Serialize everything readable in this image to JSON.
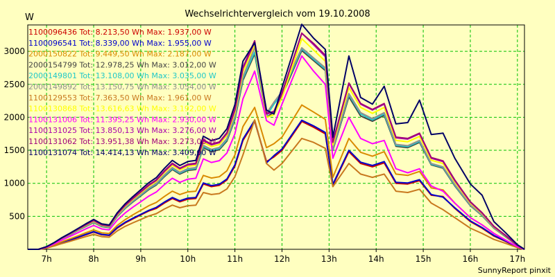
{
  "chart_data": {
    "type": "line",
    "title": "Wechselrichtervergleich vom 19.10.2008",
    "ylabel": "W",
    "xlabel": "",
    "ylim": [
      0,
      3400
    ],
    "xlim": [
      6.6,
      17.15
    ],
    "y_ticks": [
      500,
      1000,
      1500,
      2000,
      2500,
      3000
    ],
    "x_ticks": [
      {
        "v": 7,
        "label": "7h"
      },
      {
        "v": 8,
        "label": "8h"
      },
      {
        "v": 9,
        "label": "9h"
      },
      {
        "v": 10,
        "label": "10h"
      },
      {
        "v": 11,
        "label": "11h"
      },
      {
        "v": 12,
        "label": "12h"
      },
      {
        "v": 13,
        "label": "13h"
      },
      {
        "v": 14,
        "label": "14h"
      },
      {
        "v": 15,
        "label": "15h"
      },
      {
        "v": 16,
        "label": "16h"
      },
      {
        "v": 17,
        "label": "17h"
      }
    ],
    "grid": true,
    "legend_position": "top-left",
    "footer": "SunnyReport pinxit",
    "x": [
      6.6,
      6.83,
      7.0,
      7.17,
      7.33,
      7.5,
      7.67,
      7.83,
      8.0,
      8.17,
      8.33,
      8.5,
      8.67,
      8.83,
      9.0,
      9.17,
      9.33,
      9.5,
      9.67,
      9.83,
      10.0,
      10.17,
      10.33,
      10.5,
      10.67,
      10.83,
      11.0,
      11.17,
      11.42,
      11.67,
      11.83,
      12.0,
      12.42,
      12.67,
      12.92,
      13.08,
      13.42,
      13.67,
      13.92,
      14.17,
      14.42,
      14.67,
      14.92,
      15.17,
      15.42,
      15.67,
      16.0,
      16.25,
      16.5,
      16.75,
      17.0,
      17.15
    ],
    "series": [
      {
        "name": "1100096436 Tot: 8.213,50 Wh Max: 1.937,00 W",
        "color": "#cc0000",
        "values": [
          0,
          0,
          20,
          60,
          100,
          140,
          180,
          220,
          260,
          220,
          210,
          320,
          400,
          460,
          520,
          580,
          620,
          700,
          770,
          720,
          760,
          770,
          990,
          950,
          970,
          1050,
          1260,
          1650,
          1937,
          1330,
          1400,
          1500,
          1937,
          1850,
          1750,
          970,
          1480,
          1300,
          1250,
          1310,
          1000,
          990,
          1040,
          820,
          800,
          620,
          420,
          320,
          200,
          120,
          30,
          0
        ]
      },
      {
        "name": "1100096541 Tot: 8.339,00 Wh Max: 1.955,00 W",
        "color": "#0000cc",
        "values": [
          0,
          0,
          22,
          62,
          104,
          145,
          185,
          226,
          268,
          226,
          215,
          330,
          410,
          470,
          530,
          590,
          635,
          715,
          785,
          735,
          775,
          785,
          1005,
          965,
          985,
          1065,
          1280,
          1670,
          1955,
          1310,
          1420,
          1520,
          1955,
          1870,
          1770,
          985,
          1500,
          1320,
          1270,
          1330,
          1015,
          1005,
          1055,
          830,
          790,
          630,
          430,
          330,
          210,
          125,
          35,
          0
        ]
      },
      {
        "name": "2000150822 Tot: 9.449,50 Wh Max: 2.187,00 W",
        "color": "#d98a00",
        "values": [
          0,
          0,
          25,
          70,
          115,
          160,
          205,
          250,
          295,
          250,
          240,
          360,
          450,
          520,
          590,
          660,
          710,
          800,
          880,
          830,
          870,
          880,
          1120,
          1080,
          1100,
          1190,
          1430,
          1860,
          2150,
          1540,
          1600,
          1700,
          2187,
          2080,
          1970,
          1090,
          1680,
          1470,
          1410,
          1480,
          1140,
          1120,
          1180,
          930,
          900,
          700,
          480,
          370,
          240,
          140,
          40,
          0
        ]
      },
      {
        "name": "2000154799 Tot: 12.978,25 Wh Max: 3.012,00 W",
        "color": "#444444",
        "values": [
          0,
          0,
          35,
          95,
          160,
          220,
          285,
          345,
          405,
          345,
          330,
          495,
          620,
          715,
          810,
          905,
          975,
          1100,
          1210,
          1140,
          1195,
          1210,
          1540,
          1480,
          1510,
          1640,
          1970,
          2560,
          2960,
          2000,
          2080,
          2330,
          3012,
          2860,
          2710,
          1500,
          2310,
          2020,
          1940,
          2030,
          1560,
          1540,
          1620,
          1280,
          1230,
          960,
          660,
          510,
          320,
          190,
          55,
          0
        ]
      },
      {
        "name": "2000149801 Tot: 13.108,00 Wh Max: 3.035,00 W",
        "color": "#20c8c8",
        "values": [
          0,
          0,
          36,
          96,
          162,
          223,
          289,
          350,
          411,
          350,
          335,
          502,
          628,
          724,
          820,
          916,
          987,
          1113,
          1224,
          1154,
          1210,
          1224,
          1558,
          1497,
          1528,
          1660,
          1993,
          2590,
          2990,
          2020,
          2200,
          2360,
          3035,
          2880,
          2730,
          1510,
          2340,
          2050,
          1960,
          2050,
          1575,
          1555,
          1635,
          1290,
          1240,
          970,
          665,
          515,
          325,
          195,
          55,
          0
        ]
      },
      {
        "name": "2000149892 Tot: 13.150,75 Wh Max: 3.054,00 W",
        "color": "#909090",
        "values": [
          0,
          0,
          37,
          97,
          164,
          226,
          292,
          354,
          415,
          354,
          338,
          508,
          635,
          732,
          829,
          926,
          998,
          1125,
          1238,
          1167,
          1223,
          1238,
          1575,
          1513,
          1545,
          1678,
          2015,
          2615,
          3054,
          2060,
          2230,
          2390,
          3054,
          2900,
          2750,
          1520,
          2360,
          2070,
          1980,
          2070,
          1590,
          1570,
          1650,
          1300,
          1250,
          980,
          670,
          520,
          330,
          198,
          56,
          0
        ]
      },
      {
        "name": "1100129553 Tot: 7.363,50 Wh Max: 1.961,00 W",
        "color": "#c8781e",
        "values": [
          0,
          0,
          18,
          52,
          88,
          122,
          158,
          192,
          226,
          192,
          184,
          278,
          348,
          400,
          452,
          505,
          540,
          610,
          670,
          630,
          660,
          670,
          860,
          830,
          845,
          915,
          1100,
          1430,
          1961,
          1300,
          1200,
          1300,
          1680,
          1620,
          1530,
          950,
          1300,
          1140,
          1090,
          1140,
          880,
          860,
          910,
          700,
          600,
          480,
          320,
          240,
          150,
          90,
          25,
          0
        ]
      },
      {
        "name": "1100130868 Tot: 13.616,63 Wh Max: 3.192,00 W",
        "color": "#ffff00",
        "values": [
          0,
          0,
          38,
          100,
          168,
          233,
          300,
          364,
          428,
          364,
          348,
          522,
          653,
          753,
          853,
          953,
          1027,
          1158,
          1274,
          1201,
          1258,
          1274,
          1621,
          1557,
          1589,
          1727,
          2073,
          2690,
          3100,
          2000,
          2040,
          2300,
          3192,
          3020,
          2850,
          1580,
          2450,
          2150,
          2060,
          2150,
          1650,
          1630,
          1710,
          1350,
          1300,
          1020,
          700,
          540,
          340,
          205,
          58,
          0
        ]
      },
      {
        "name": "1100131006 Tot: 11.395,25 Wh Max: 2.930,00 W",
        "color": "#ff00ff",
        "values": [
          0,
          0,
          32,
          85,
          142,
          197,
          254,
          308,
          362,
          308,
          295,
          441,
          552,
          637,
          721,
          806,
          868,
          979,
          1077,
          1015,
          1063,
          1077,
          1370,
          1316,
          1343,
          1460,
          1750,
          2280,
          2700,
          1950,
          1880,
          2200,
          2930,
          2700,
          2500,
          1380,
          2000,
          1680,
          1600,
          1650,
          1220,
          1160,
          1220,
          960,
          880,
          700,
          480,
          370,
          240,
          140,
          40,
          0
        ]
      },
      {
        "name": "1100131025 Tot: 13.850,13 Wh Max: 3.276,00 W",
        "color": "#aa00aa",
        "values": [
          0,
          0,
          39,
          102,
          171,
          237,
          305,
          370,
          435,
          370,
          354,
          531,
          664,
          766,
          867,
          969,
          1044,
          1177,
          1295,
          1221,
          1279,
          1295,
          1648,
          1583,
          1616,
          1756,
          2108,
          2740,
          3140,
          2050,
          2080,
          2360,
          3276,
          3100,
          2920,
          1620,
          2510,
          2200,
          2110,
          2200,
          1690,
          1670,
          1750,
          1380,
          1330,
          1040,
          715,
          550,
          345,
          208,
          59,
          0
        ]
      },
      {
        "name": "1100131062 Tot: 13.951,38 Wh Max: 3.273,00 W",
        "color": "#a0007a",
        "values": [
          0,
          0,
          39,
          103,
          172,
          239,
          307,
          373,
          438,
          373,
          356,
          535,
          669,
          771,
          873,
          976,
          1051,
          1186,
          1304,
          1229,
          1288,
          1304,
          1659,
          1594,
          1627,
          1768,
          2122,
          2760,
          3160,
          2060,
          2090,
          2370,
          3273,
          3120,
          2940,
          1630,
          2520,
          2210,
          2120,
          2210,
          1700,
          1680,
          1760,
          1390,
          1340,
          1050,
          720,
          555,
          348,
          210,
          60,
          0
        ]
      },
      {
        "name": "1100131074 Tot: 14.414,13 Wh Max: 3.409,00 W",
        "color": "#000066",
        "values": [
          0,
          0,
          40,
          106,
          178,
          246,
          317,
          385,
          452,
          385,
          368,
          552,
          690,
          796,
          902,
          1008,
          1086,
          1225,
          1347,
          1270,
          1330,
          1347,
          1714,
          1646,
          1681,
          1826,
          2192,
          2850,
          3130,
          2110,
          2050,
          2450,
          3409,
          3200,
          3030,
          1700,
          2930,
          2300,
          2200,
          2470,
          1900,
          1920,
          2260,
          1740,
          1760,
          1380,
          990,
          820,
          420,
          250,
          70,
          0
        ]
      }
    ]
  }
}
